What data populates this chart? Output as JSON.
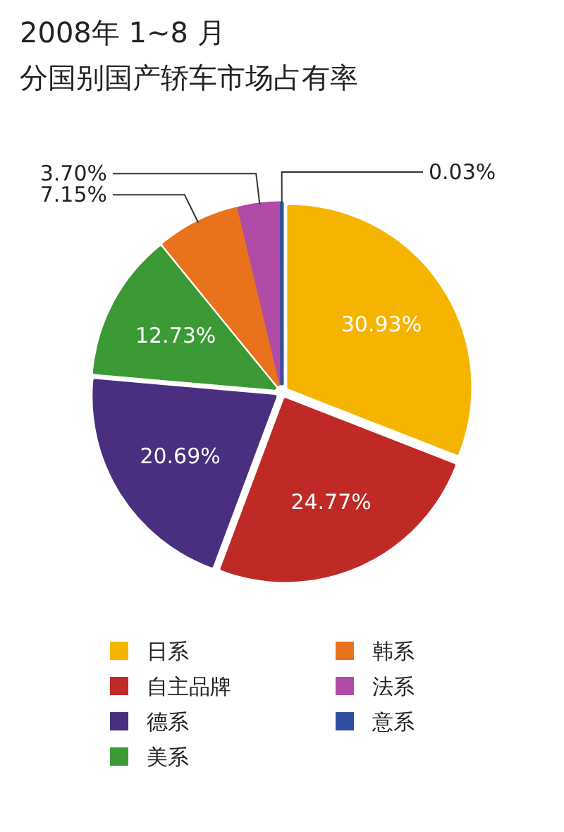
{
  "chart_data": {
    "type": "pie",
    "title": "2008年 1~8 月",
    "subtitle": "分国别国产轿车市场占有率",
    "categories": [
      "日系",
      "自主品牌",
      "德系",
      "美系",
      "韩系",
      "法系",
      "意系"
    ],
    "values": [
      30.93,
      24.77,
      20.69,
      12.73,
      7.15,
      3.7,
      0.03
    ],
    "colors": [
      "#f5b400",
      "#c02a26",
      "#4a2f80",
      "#3c9a36",
      "#e8731c",
      "#b04ca6",
      "#2f4fa0"
    ],
    "data_labels": true,
    "value_labels": [
      "30.93%",
      "24.77%",
      "20.69%",
      "12.73%",
      "7.15%",
      "3.70%",
      "0.03%"
    ],
    "legend": "bottom"
  }
}
